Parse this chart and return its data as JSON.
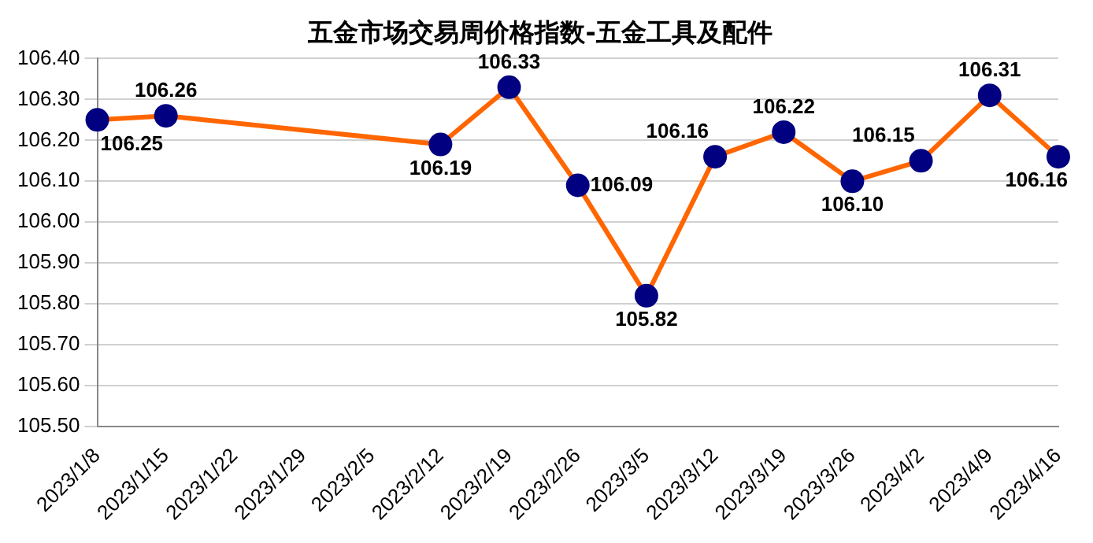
{
  "chart_data": {
    "type": "line",
    "title": "五金市场交易周价格指数-五金工具及配件",
    "categories": [
      "2023/1/8",
      "2023/1/15",
      "2023/1/22",
      "2023/1/29",
      "2023/2/5",
      "2023/2/12",
      "2023/2/19",
      "2023/2/26",
      "2023/3/5",
      "2023/3/12",
      "2023/3/19",
      "2023/3/26",
      "2023/4/2",
      "2023/4/9",
      "2023/4/16"
    ],
    "series": [
      {
        "color": "#ff6600",
        "values": [
          106.25,
          106.26,
          null,
          null,
          null,
          106.19,
          106.33,
          106.09,
          105.82,
          106.16,
          106.22,
          106.1,
          106.15,
          106.31,
          106.16
        ],
        "value_labels": [
          "106.25",
          "106.26",
          null,
          null,
          null,
          "106.19",
          "106.33",
          "106.09",
          "105.82",
          "106.16",
          "106.22",
          "106.10",
          "106.15",
          "106.31",
          "106.16"
        ]
      }
    ],
    "ylim": [
      105.5,
      106.4
    ],
    "yticks": [
      {
        "value": 105.5,
        "label": "105.50"
      },
      {
        "value": 105.6,
        "label": "105.60"
      },
      {
        "value": 105.7,
        "label": "105.70"
      },
      {
        "value": 105.8,
        "label": "105.80"
      },
      {
        "value": 105.9,
        "label": "105.90"
      },
      {
        "value": 106.0,
        "label": "106.00"
      },
      {
        "value": 106.1,
        "label": "106.10"
      },
      {
        "value": 106.2,
        "label": "106.20"
      },
      {
        "value": 106.3,
        "label": "106.30"
      },
      {
        "value": 106.4,
        "label": "106.40"
      }
    ],
    "grid": "y",
    "legend": false,
    "marker": "circle",
    "line_style": "solid"
  }
}
